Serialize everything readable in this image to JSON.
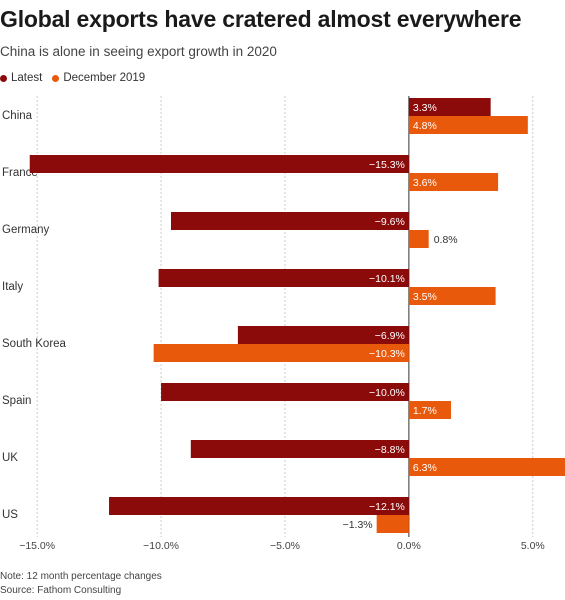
{
  "title": "Global exports have cratered almost everywhere",
  "subtitle": "China is alone in seeing export growth in 2020",
  "legend": [
    {
      "label": "Latest",
      "color": "#8b0a0a"
    },
    {
      "label": "December 2019",
      "color": "#e8590c"
    }
  ],
  "note": "Note: 12 month percentage changes",
  "source": "Source: Fathom Consulting",
  "chart_data": {
    "type": "bar",
    "orientation": "horizontal",
    "categories": [
      "China",
      "France",
      "Germany",
      "Italy",
      "South Korea",
      "Spain",
      "UK",
      "US"
    ],
    "series": [
      {
        "name": "Latest",
        "color": "#8b0a0a",
        "values": [
          3.3,
          -15.3,
          -9.6,
          -10.1,
          -6.9,
          -10.0,
          -8.8,
          -12.1
        ],
        "labels": [
          "3.3%",
          "−15.3%",
          "−9.6%",
          "−10.1%",
          "−6.9%",
          "−10.0%",
          "−8.8%",
          "−12.1%"
        ]
      },
      {
        "name": "December 2019",
        "color": "#e8590c",
        "values": [
          4.8,
          3.6,
          0.8,
          3.5,
          -10.3,
          1.7,
          6.3,
          -1.3
        ],
        "labels": [
          "4.8%",
          "3.6%",
          "0.8%",
          "3.5%",
          "−10.3%",
          "1.7%",
          "6.3%",
          "−1.3%"
        ]
      }
    ],
    "xlim": [
      -16.5,
      6.3
    ],
    "xticks": [
      -15,
      -10,
      -5,
      0,
      5
    ],
    "xtick_labels": [
      "−15.0%",
      "−10.0%",
      "−5.0%",
      "0.0%",
      "5.0%"
    ],
    "grid": true,
    "legend_position": "top-left"
  }
}
